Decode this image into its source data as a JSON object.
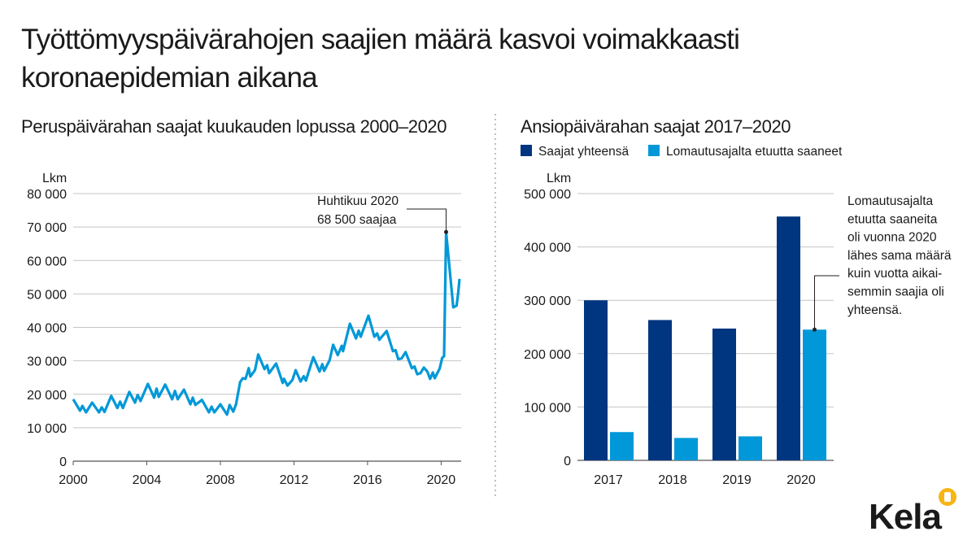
{
  "title_lines": [
    "Työttömyyspäivärahojen saajien määrä kasvoi voimakkaasti",
    "koronaepidemian aikana"
  ],
  "logo": {
    "text": "Kela",
    "color": "#003580",
    "badge_color": "#f7b515"
  },
  "colors": {
    "dark": "#003580",
    "light": "#0098d8",
    "grid": "#c4c4c4",
    "axis": "#555555"
  },
  "chart_data": [
    {
      "type": "line",
      "title": "Peruspäivärahan saajat kuukauden lopussa 2000–2020",
      "ylabel": "Lkm",
      "xlabel": "",
      "xlim": [
        2000,
        2021
      ],
      "ylim": [
        0,
        80000
      ],
      "grid": true,
      "x_ticks": [
        "2000",
        "2004",
        "2008",
        "2012",
        "2016",
        "2020"
      ],
      "y_ticks": [
        "0",
        "10 000",
        "20 000",
        "30 000",
        "40 000",
        "50 000",
        "60 000",
        "70 000",
        "80 000"
      ],
      "annotation": [
        "Huhtikuu 2020",
        "68 500 saajaa"
      ],
      "annotation_point": [
        2020.27,
        68500
      ],
      "series": [
        {
          "name": "Peruspäivärahan saajat",
          "points": [
            [
              2000.0,
              18500
            ],
            [
              2000.37,
              15100
            ],
            [
              2000.5,
              16500
            ],
            [
              2000.7,
              14600
            ],
            [
              2001.03,
              17500
            ],
            [
              2001.4,
              14600
            ],
            [
              2001.55,
              16100
            ],
            [
              2001.7,
              14700
            ],
            [
              2002.07,
              19500
            ],
            [
              2002.4,
              15900
            ],
            [
              2002.55,
              17800
            ],
            [
              2002.7,
              15900
            ],
            [
              2003.05,
              20700
            ],
            [
              2003.36,
              17500
            ],
            [
              2003.5,
              19800
            ],
            [
              2003.66,
              18000
            ],
            [
              2004.06,
              23100
            ],
            [
              2004.4,
              19000
            ],
            [
              2004.53,
              21700
            ],
            [
              2004.65,
              19200
            ],
            [
              2005.0,
              22900
            ],
            [
              2005.38,
              18500
            ],
            [
              2005.53,
              21000
            ],
            [
              2005.68,
              18500
            ],
            [
              2006.02,
              21400
            ],
            [
              2006.37,
              17000
            ],
            [
              2006.5,
              19000
            ],
            [
              2006.64,
              16800
            ],
            [
              2007.0,
              18300
            ],
            [
              2007.38,
              14600
            ],
            [
              2007.52,
              16300
            ],
            [
              2007.67,
              14600
            ],
            [
              2008.0,
              17000
            ],
            [
              2008.36,
              13900
            ],
            [
              2008.5,
              16800
            ],
            [
              2008.7,
              14800
            ],
            [
              2008.85,
              17000
            ],
            [
              2009.07,
              23600
            ],
            [
              2009.22,
              24800
            ],
            [
              2009.37,
              24600
            ],
            [
              2009.54,
              27800
            ],
            [
              2009.63,
              25300
            ],
            [
              2009.88,
              27200
            ],
            [
              2010.06,
              31900
            ],
            [
              2010.4,
              27500
            ],
            [
              2010.54,
              28700
            ],
            [
              2010.65,
              26300
            ],
            [
              2011.03,
              29200
            ],
            [
              2011.39,
              23400
            ],
            [
              2011.46,
              24600
            ],
            [
              2011.65,
              22600
            ],
            [
              2011.92,
              24300
            ],
            [
              2012.09,
              27200
            ],
            [
              2012.36,
              23800
            ],
            [
              2012.53,
              25400
            ],
            [
              2012.65,
              24100
            ],
            [
              2013.05,
              31100
            ],
            [
              2013.39,
              26800
            ],
            [
              2013.54,
              29000
            ],
            [
              2013.64,
              27000
            ],
            [
              2013.94,
              30200
            ],
            [
              2014.13,
              34800
            ],
            [
              2014.38,
              31700
            ],
            [
              2014.6,
              34500
            ],
            [
              2014.67,
              32900
            ],
            [
              2015.04,
              41100
            ],
            [
              2015.37,
              36700
            ],
            [
              2015.52,
              39000
            ],
            [
              2015.63,
              37200
            ],
            [
              2016.05,
              43500
            ],
            [
              2016.37,
              37200
            ],
            [
              2016.52,
              38200
            ],
            [
              2016.64,
              36300
            ],
            [
              2017.04,
              38900
            ],
            [
              2017.38,
              32900
            ],
            [
              2017.52,
              33200
            ],
            [
              2017.67,
              30500
            ],
            [
              2017.85,
              30700
            ],
            [
              2018.07,
              32600
            ],
            [
              2018.41,
              27800
            ],
            [
              2018.55,
              28300
            ],
            [
              2018.7,
              26000
            ],
            [
              2018.88,
              26300
            ],
            [
              2019.06,
              28000
            ],
            [
              2019.25,
              26800
            ],
            [
              2019.4,
              24600
            ],
            [
              2019.55,
              26500
            ],
            [
              2019.65,
              24800
            ],
            [
              2019.92,
              27700
            ],
            [
              2020.06,
              30900
            ],
            [
              2020.16,
              31400
            ],
            [
              2020.27,
              68500
            ],
            [
              2020.5,
              55200
            ],
            [
              2020.66,
              46000
            ],
            [
              2020.84,
              46500
            ],
            [
              2020.93,
              50400
            ],
            [
              2021.0,
              54500
            ]
          ]
        }
      ]
    },
    {
      "type": "bar",
      "title": "Ansiopäivärahan saajat 2017–2020",
      "ylabel": "Lkm",
      "xlabel": "",
      "ylim": [
        0,
        500000
      ],
      "grid": true,
      "legend_placement": "top-left",
      "categories": [
        "2017",
        "2018",
        "2019",
        "2020"
      ],
      "y_ticks": [
        "0",
        "100 000",
        "200 000",
        "300 000",
        "400 000",
        "500 000"
      ],
      "series": [
        {
          "name": "Saajat yhteensä",
          "values": [
            300000,
            263000,
            247000,
            457000
          ]
        },
        {
          "name": "Lomautusajalta etuutta saaneet",
          "values": [
            53000,
            42000,
            45000,
            245000
          ]
        }
      ],
      "annotation": [
        "Lomautusajalta",
        "etuutta saaneita",
        "oli vuonna 2020",
        "lähes sama määrä",
        "kuin vuotta aikai-",
        "semmin saajia oli",
        "yhteensä."
      ]
    }
  ]
}
